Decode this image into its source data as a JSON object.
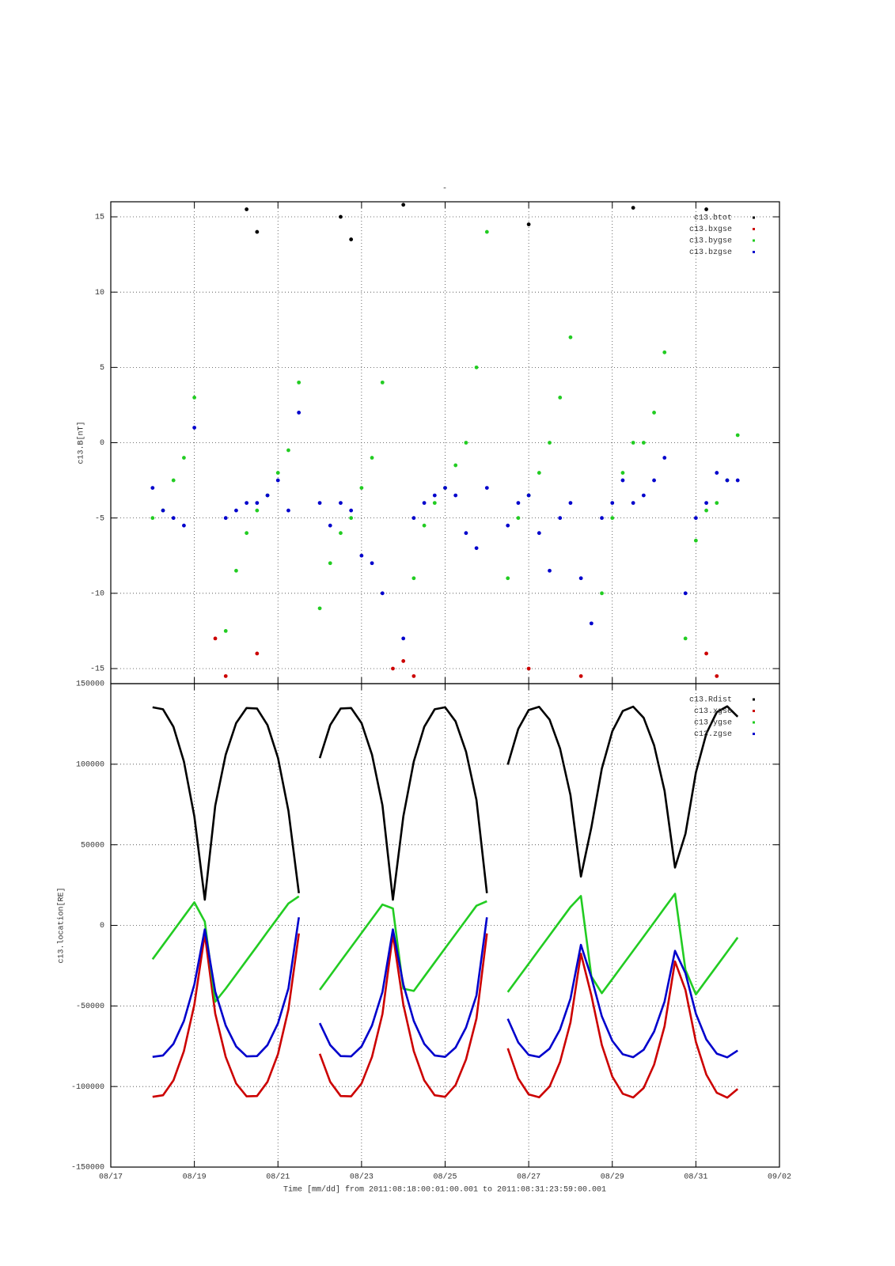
{
  "chart_data": [
    {
      "type": "scatter",
      "title": "-",
      "ylabel": "c13.B[nT]",
      "xlim": [
        17,
        33
      ],
      "ylim": [
        -16,
        16
      ],
      "yticks": [
        -15,
        -10,
        -5,
        0,
        5,
        10,
        15
      ],
      "grid": true,
      "legend": "upper right",
      "x": [
        18,
        18.25,
        18.5,
        18.75,
        19,
        19.25,
        19.5,
        19.75,
        20,
        20.25,
        20.5,
        20.75,
        21,
        21.25,
        21.5,
        21.75,
        22,
        22.25,
        22.5,
        22.75,
        23,
        23.25,
        23.5,
        23.75,
        24,
        24.25,
        24.5,
        24.75,
        25,
        25.25,
        25.5,
        25.75,
        26,
        26.25,
        26.5,
        26.75,
        27,
        27.25,
        27.5,
        27.75,
        28,
        28.25,
        28.5,
        28.75,
        29,
        29.25,
        29.5,
        29.75,
        30,
        30.25,
        30.5,
        30.75,
        31,
        31.25,
        31.5,
        31.75,
        32
      ],
      "series": [
        {
          "name": "c13.btot",
          "color": "#000000",
          "values": [
            null,
            null,
            null,
            null,
            null,
            null,
            null,
            null,
            null,
            15.5,
            14.0,
            null,
            null,
            null,
            null,
            null,
            null,
            null,
            15.0,
            13.5,
            null,
            null,
            null,
            null,
            15.8,
            null,
            null,
            null,
            null,
            null,
            null,
            null,
            null,
            null,
            null,
            null,
            14.5,
            null,
            null,
            null,
            null,
            null,
            null,
            null,
            null,
            null,
            15.6,
            null,
            null,
            null,
            null,
            null,
            null,
            15.5,
            null,
            null,
            null
          ]
        },
        {
          "name": "c13.bxgse",
          "color": "#cc0000",
          "values": [
            null,
            null,
            null,
            null,
            null,
            null,
            -13.0,
            -15.5,
            null,
            null,
            -14.0,
            null,
            null,
            null,
            null,
            null,
            null,
            null,
            null,
            null,
            null,
            null,
            null,
            -15.0,
            -14.5,
            -15.5,
            null,
            null,
            null,
            null,
            null,
            null,
            null,
            null,
            null,
            null,
            -15.0,
            null,
            null,
            null,
            null,
            -15.5,
            null,
            null,
            null,
            null,
            null,
            null,
            null,
            null,
            null,
            null,
            null,
            -14.0,
            -15.5,
            null,
            null
          ]
        },
        {
          "name": "c13.bygse",
          "color": "#22cc22",
          "values": [
            -5,
            -4.5,
            -2.5,
            -1,
            3,
            null,
            null,
            -12.5,
            -8.5,
            -6,
            -4.5,
            -3.5,
            -2,
            -0.5,
            4,
            null,
            -11,
            -8,
            -6,
            -5,
            -3,
            -1,
            4,
            null,
            null,
            -9,
            -5.5,
            -4,
            -3,
            -1.5,
            0,
            5,
            14,
            null,
            -9,
            -5,
            -3.5,
            -2,
            0,
            3,
            7,
            null,
            null,
            -10,
            -5,
            -2,
            0,
            0,
            2,
            6,
            null,
            -13,
            -6.5,
            -4.5,
            -4,
            -2.5,
            0.5
          ]
        },
        {
          "name": "c13.bzgse",
          "color": "#0000cc",
          "values": [
            -3,
            -4.5,
            -5,
            -5.5,
            1,
            null,
            null,
            -5,
            -4.5,
            -4,
            -4,
            -3.5,
            -2.5,
            -4.5,
            2,
            null,
            -4,
            -5.5,
            -4,
            -4.5,
            -7.5,
            -8,
            -10,
            null,
            -13,
            -5,
            -4,
            -3.5,
            -3,
            -3.5,
            -6,
            -7,
            -3,
            null,
            -5.5,
            -4,
            -3.5,
            -6,
            -8.5,
            -5,
            -4,
            -9,
            -12,
            -5,
            -4,
            -2.5,
            -4,
            -3.5,
            -2.5,
            -1,
            null,
            -10,
            -5,
            -4,
            -2,
            -2.5,
            -2.5
          ]
        }
      ]
    },
    {
      "type": "line",
      "ylabel": "c13.location[RE]",
      "xlabel": "Time [mm/dd]  from 2011:08:18:00:01:00.001  to  2011:08:31:23:59:00.001",
      "xlim": [
        17,
        33
      ],
      "xticks": [
        {
          "value": 17,
          "label": "08/17"
        },
        {
          "value": 19,
          "label": "08/19"
        },
        {
          "value": 21,
          "label": "08/21"
        },
        {
          "value": 23,
          "label": "08/23"
        },
        {
          "value": 25,
          "label": "08/25"
        },
        {
          "value": 27,
          "label": "08/27"
        },
        {
          "value": 29,
          "label": "08/29"
        },
        {
          "value": 31,
          "label": "08/31"
        },
        {
          "value": 33,
          "label": "09/02"
        }
      ],
      "ylim": [
        -150000,
        150000
      ],
      "yticks": [
        -150000,
        -100000,
        -50000,
        0,
        50000,
        100000,
        150000
      ],
      "grid": true,
      "legend": "upper right",
      "x": [
        18,
        18.25,
        18.5,
        18.75,
        19,
        19.25,
        19.5,
        19.75,
        20,
        20.25,
        20.5,
        20.75,
        21,
        21.25,
        21.5,
        21.75,
        22,
        22.25,
        22.5,
        22.75,
        23,
        23.25,
        23.5,
        23.75,
        24,
        24.25,
        24.5,
        24.75,
        25,
        25.25,
        25.5,
        25.75,
        26,
        26.25,
        26.5,
        26.75,
        27,
        27.25,
        27.5,
        27.75,
        28,
        28.25,
        28.5,
        28.75,
        29,
        29.25,
        29.5,
        29.75,
        30,
        30.25,
        30.5,
        30.75,
        31,
        31.25,
        31.5,
        31.75,
        32
      ],
      "series": [
        {
          "name": "c13.Rdist",
          "color": "#000000",
          "values": [
            135300,
            134100,
            123200,
            101700,
            67600,
            15900,
            74300,
            105900,
            125500,
            134900,
            134600,
            124300,
            103900,
            71100,
            20000,
            null,
            103800,
            124300,
            134600,
            134900,
            125500,
            105900,
            74500,
            15900,
            67600,
            101700,
            123200,
            134100,
            135300,
            126600,
            107800,
            77800,
            20000,
            null,
            99700,
            121900,
            133600,
            135600,
            127700,
            109800,
            80800,
            30300,
            60800,
            97200,
            120500,
            133000,
            135700,
            128800,
            111700,
            83500,
            35900,
            56800,
            94900,
            119000,
            132300,
            135900,
            129500
          ]
        },
        {
          "name": "c13.xgse",
          "color": "#cc0000",
          "values": [
            -106400,
            -105400,
            -96200,
            -78000,
            -49200,
            -5500,
            -54800,
            -81600,
            -98100,
            -106100,
            -105900,
            -97100,
            -79900,
            -52100,
            -5000,
            null,
            -79700,
            -97100,
            -105900,
            -106100,
            -98100,
            -81600,
            -55000,
            -5500,
            -49200,
            -78000,
            -96200,
            -105400,
            -106400,
            -99100,
            -83200,
            -57800,
            -5000,
            null,
            -76300,
            -95000,
            -104900,
            -106700,
            -100000,
            -84800,
            -60300,
            -17600,
            -43400,
            -74200,
            -93900,
            -104500,
            -106800,
            -100900,
            -86400,
            -62600,
            -22400,
            -40100,
            -72300,
            -92600,
            -103900,
            -106900,
            -101500
          ]
        },
        {
          "name": "c13.ygse",
          "color": "#22cc22",
          "values": [
            -21000,
            -12200,
            -3400,
            5500,
            14300,
            2300,
            -47400,
            -39300,
            -30500,
            -21700,
            -12900,
            -4000,
            4800,
            13600,
            18000,
            null,
            -40000,
            -31200,
            -22300,
            -13500,
            -4700,
            4100,
            12900,
            10500,
            -39300,
            -40700,
            -31800,
            -23000,
            -14200,
            -5400,
            3400,
            12200,
            15000,
            null,
            -41400,
            -32600,
            -23800,
            -15000,
            -6200,
            2600,
            11400,
            18200,
            -31600,
            -42100,
            -33300,
            -24500,
            -15700,
            -6900,
            1900,
            10800,
            19600,
            -27600,
            -42800,
            -34000,
            -25200,
            -16400,
            -7500
          ]
        },
        {
          "name": "c13.zgse",
          "color": "#0000cc",
          "values": [
            -81600,
            -80700,
            -73500,
            -59300,
            -36700,
            -2500,
            -41100,
            -62100,
            -75100,
            -81300,
            -81100,
            -74300,
            -60800,
            -39100,
            5000,
            null,
            -60700,
            -74300,
            -81100,
            -81300,
            -75100,
            -62100,
            -41300,
            -2500,
            -36700,
            -59300,
            -73500,
            -80700,
            -81600,
            -75800,
            -63400,
            -43500,
            5000,
            null,
            -58000,
            -72600,
            -80400,
            -81700,
            -76500,
            -64600,
            -45500,
            -12100,
            -32200,
            -56400,
            -71700,
            -80000,
            -81800,
            -77200,
            -65900,
            -47300,
            -15800,
            -29600,
            -54800,
            -70800,
            -79600,
            -81900,
            -77700
          ]
        }
      ]
    }
  ]
}
